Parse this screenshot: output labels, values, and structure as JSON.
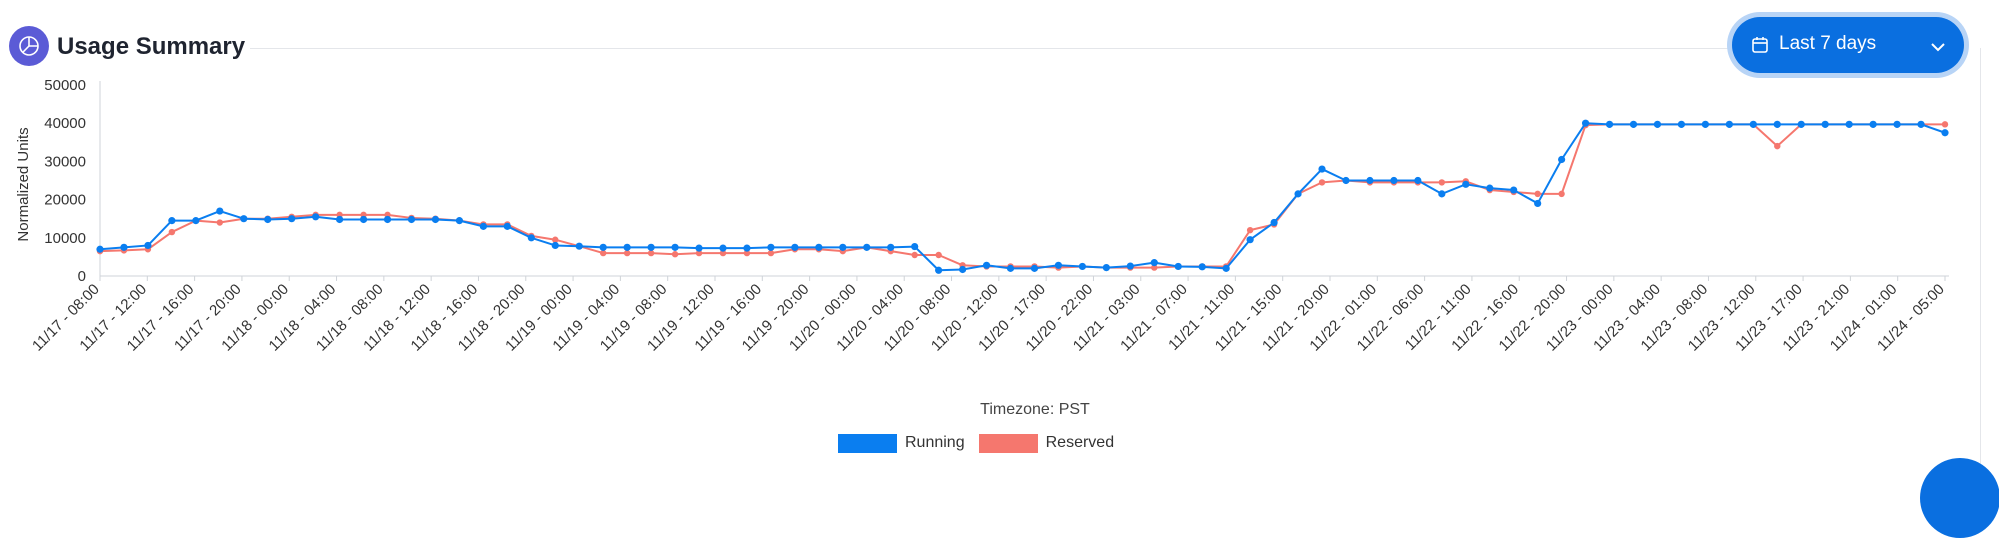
{
  "header": {
    "title": "Usage Summary",
    "logo_icon": "chart-pie-icon",
    "range_label": "Last 7 days",
    "range_icon": "calendar-icon",
    "range_chevron_icon": "chevron-down-icon"
  },
  "colors": {
    "accent": "#0a6fe0",
    "running": "#0a7ef0",
    "reserved": "#f5776e"
  },
  "chart_data": {
    "type": "line",
    "title": "",
    "xlabel": "Timezone: PST",
    "ylabel": "Normalized Units",
    "ylim": [
      0,
      50000
    ],
    "yticks": [
      0,
      10000,
      20000,
      30000,
      40000,
      50000
    ],
    "grid": false,
    "legend_position": "bottom-center",
    "x_labels_shown": [
      "11/17 - 08:00",
      "11/17 - 12:00",
      "11/17 - 16:00",
      "11/17 - 20:00",
      "11/18 - 00:00",
      "11/18 - 04:00",
      "11/18 - 08:00",
      "11/18 - 12:00",
      "11/18 - 16:00",
      "11/18 - 20:00",
      "11/19 - 00:00",
      "11/19 - 04:00",
      "11/19 - 08:00",
      "11/19 - 12:00",
      "11/19 - 16:00",
      "11/19 - 20:00",
      "11/20 - 00:00",
      "11/20 - 04:00",
      "11/20 - 08:00",
      "11/20 - 12:00",
      "11/20 - 17:00",
      "11/20 - 22:00",
      "11/21 - 03:00",
      "11/21 - 07:00",
      "11/21 - 11:00",
      "11/21 - 15:00",
      "11/21 - 20:00",
      "11/22 - 01:00",
      "11/22 - 06:00",
      "11/22 - 11:00",
      "11/22 - 16:00",
      "11/22 - 20:00",
      "11/23 - 00:00",
      "11/23 - 04:00",
      "11/23 - 08:00",
      "11/23 - 12:00",
      "11/23 - 17:00",
      "11/23 - 21:00",
      "11/24 - 01:00",
      "11/24 - 05:00"
    ],
    "series": [
      {
        "name": "Running",
        "color": "#0a7ef0",
        "values": [
          7000,
          7500,
          8000,
          14500,
          14500,
          17000,
          15000,
          14800,
          15000,
          15500,
          14800,
          14800,
          14800,
          14800,
          14800,
          14500,
          13000,
          13000,
          10000,
          8000,
          7800,
          7500,
          7500,
          7500,
          7500,
          7300,
          7300,
          7300,
          7500,
          7500,
          7500,
          7500,
          7500,
          7500,
          7700,
          1500,
          1700,
          2800,
          2000,
          2000,
          2800,
          2500,
          2200,
          2600,
          3500,
          2500,
          2400,
          2000,
          9500,
          14000,
          21500,
          28000,
          25000,
          25000,
          25000,
          25000,
          21500,
          24000,
          23000,
          22500,
          19000,
          30500,
          40000,
          39700,
          39700,
          39700,
          39700,
          39700,
          39700,
          39700,
          39700,
          39700,
          39700,
          39700,
          39700,
          39700,
          39700,
          37500
        ]
      },
      {
        "name": "Reserved",
        "color": "#f5776e",
        "values": [
          6500,
          6700,
          7000,
          11500,
          14500,
          14000,
          15000,
          15000,
          15500,
          16000,
          16000,
          16000,
          16000,
          15200,
          15000,
          14500,
          13500,
          13500,
          10500,
          9500,
          7800,
          6000,
          6000,
          6000,
          5700,
          6000,
          6000,
          6000,
          6000,
          7000,
          7000,
          6500,
          7500,
          6500,
          5500,
          5500,
          2800,
          2500,
          2500,
          2500,
          2200,
          2500,
          2200,
          2200,
          2200,
          2500,
          2500,
          2500,
          12000,
          13500,
          21500,
          24500,
          25000,
          24500,
          24500,
          24500,
          24500,
          24800,
          22500,
          22000,
          21500,
          21500,
          39500,
          39700,
          39700,
          39700,
          39700,
          39700,
          39700,
          39700,
          34000,
          39700,
          39700,
          39700,
          39700,
          39700,
          39700,
          39700
        ]
      }
    ]
  }
}
